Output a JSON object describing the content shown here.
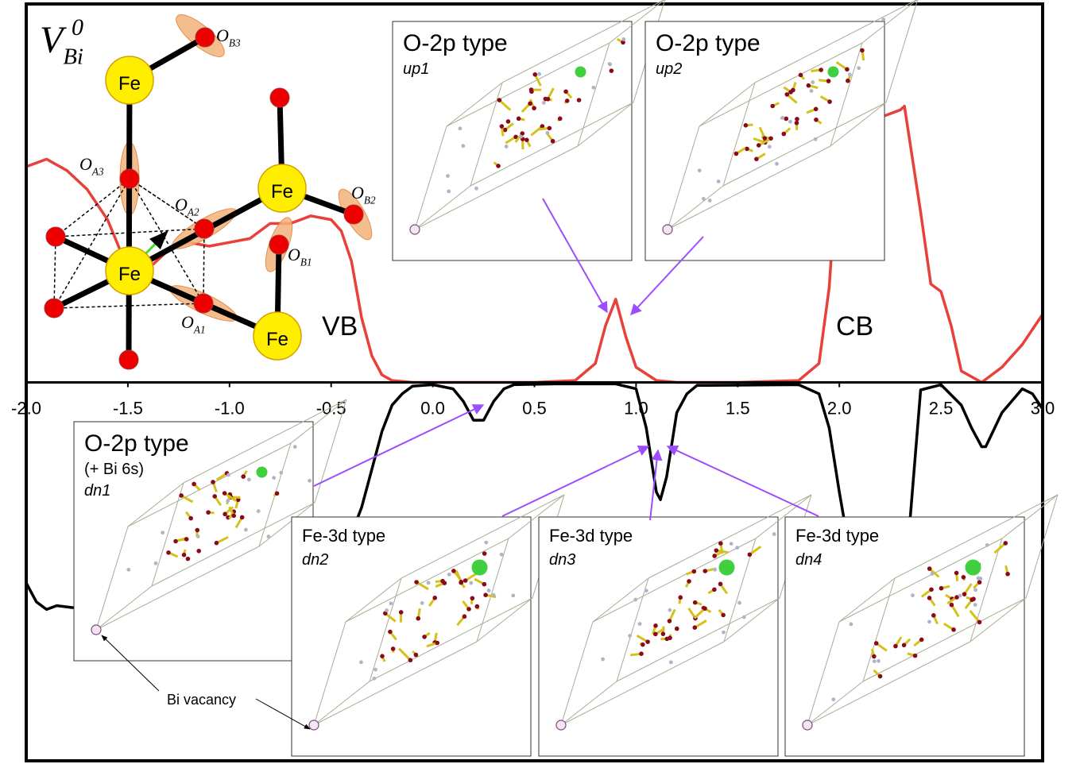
{
  "chart_data": {
    "type": "line",
    "xlim": [
      -2.0,
      3.0
    ],
    "ylim": [
      -1,
      1
    ],
    "xticks": [
      {
        "value": -2.0,
        "label": "-2.0"
      },
      -1.5,
      {
        "value": -1.0,
        "label": "-1.0"
      },
      -0.5,
      {
        "value": 0.0,
        "label": "0.0"
      },
      0.5,
      {
        "value": 1.0,
        "label": "1.0"
      },
      1.5,
      {
        "value": 2.0,
        "label": "2.0"
      },
      2.5,
      {
        "value": 3.0,
        "label": "3.0"
      }
    ],
    "series": [
      {
        "color": "#e8403a",
        "x": [
          -2.0,
          -1.9,
          -1.8,
          -1.7,
          -1.6,
          -1.5,
          -1.4,
          -1.3,
          -1.2,
          -1.1,
          -1.0,
          -0.9,
          -0.8,
          -0.7,
          -0.6,
          -0.5,
          -0.45,
          -0.4,
          -0.35,
          -0.3,
          -0.25,
          -0.2,
          -0.1,
          0.0,
          0.5,
          0.7,
          0.8,
          0.85,
          0.9,
          0.95,
          1.0,
          1.1,
          1.2,
          1.5,
          1.8,
          1.9,
          1.95,
          2.0,
          2.1,
          2.2,
          2.3,
          2.32,
          2.4,
          2.45,
          2.5,
          2.55,
          2.6,
          2.7,
          2.8,
          2.9,
          3.0
        ],
        "values": [
          0.57,
          0.59,
          0.56,
          0.51,
          0.43,
          0.3,
          0.3,
          0.35,
          0.37,
          0.36,
          0.37,
          0.38,
          0.42,
          0.42,
          0.44,
          0.43,
          0.4,
          0.32,
          0.17,
          0.07,
          0.02,
          0.005,
          0,
          0,
          0,
          0.005,
          0.05,
          0.15,
          0.22,
          0.12,
          0.04,
          0.005,
          0,
          0,
          0.005,
          0.05,
          0.25,
          0.65,
          0.72,
          0.7,
          0.72,
          0.73,
          0.45,
          0.26,
          0.24,
          0.15,
          0.03,
          0,
          0.04,
          0.1,
          0.18
        ]
      },
      {
        "color": "#000000",
        "x": [
          -2.0,
          -1.95,
          -1.9,
          -1.85,
          -1.7,
          -1.0,
          -0.5,
          -0.4,
          -0.35,
          -0.3,
          -0.25,
          -0.2,
          -0.15,
          -0.1,
          0.0,
          0.1,
          0.15,
          0.2,
          0.25,
          0.3,
          0.35,
          0.4,
          0.6,
          0.9,
          1.0,
          1.05,
          1.1,
          1.12,
          1.15,
          1.2,
          1.25,
          1.3,
          1.8,
          1.9,
          1.95,
          2.0,
          2.1,
          2.3,
          2.35,
          2.4,
          2.5,
          2.6,
          2.65,
          2.7,
          2.72,
          2.8,
          2.9,
          2.95,
          3.0
        ],
        "values": [
          -0.53,
          -0.58,
          -0.6,
          -0.59,
          -0.6,
          -0.6,
          -0.55,
          -0.4,
          -0.33,
          -0.23,
          -0.13,
          -0.06,
          -0.03,
          -0.01,
          -0.006,
          -0.017,
          -0.05,
          -0.1,
          -0.1,
          -0.05,
          -0.017,
          -0.006,
          -0.004,
          -0.004,
          -0.017,
          -0.12,
          -0.29,
          -0.31,
          -0.25,
          -0.08,
          -0.03,
          -0.008,
          -0.006,
          -0.03,
          -0.12,
          -0.29,
          -0.6,
          -0.6,
          -0.35,
          -0.02,
          -0.006,
          -0.06,
          -0.12,
          -0.17,
          -0.17,
          -0.08,
          -0.017,
          -0.03,
          -0.07
        ]
      }
    ],
    "annotations": [
      "VB",
      "CB",
      "Bi vacancy"
    ],
    "insets": [
      {
        "title": "O-2p type",
        "lines": [
          "up1"
        ]
      },
      {
        "title": "O-2p type",
        "lines": [
          "up2"
        ]
      },
      {
        "title": "O-2p type",
        "lines": [
          "(+ Bi 6s)",
          "dn1"
        ]
      },
      {
        "title": "Fe-3d type",
        "lines": [
          "dn2"
        ]
      },
      {
        "title": "Fe-3d type",
        "lines": [
          "dn3"
        ]
      },
      {
        "title": "Fe-3d type",
        "lines": [
          "dn4"
        ]
      }
    ],
    "structure": {
      "defect": {
        "main": "V",
        "sub": "Bi",
        "sup": "0"
      },
      "atoms": [
        "Fe",
        "Fe",
        "Fe",
        "Fe"
      ],
      "oxygens": [
        {
          "main": "O",
          "sub": "A3"
        },
        {
          "main": "O",
          "sub": "A2"
        },
        {
          "main": "O",
          "sub": "A1"
        },
        {
          "main": "O",
          "sub": "B1"
        },
        {
          "main": "O",
          "sub": "B2"
        },
        {
          "main": "O",
          "sub": "B3"
        }
      ]
    }
  }
}
